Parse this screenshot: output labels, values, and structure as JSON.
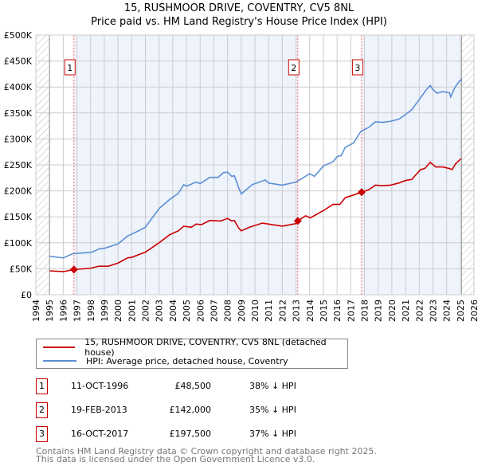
{
  "chart_data": {
    "type": "line",
    "title": "15, RUSHMOOR DRIVE, COVENTRY, CV5 8NL",
    "subtitle": "Price paid vs. HM Land Registry's House Price Index (HPI)",
    "xlabel": "",
    "ylabel": "",
    "xlim": [
      1994,
      2026
    ],
    "ylim": [
      0,
      500000
    ],
    "grid": true,
    "x_ticks": [
      "1994",
      "1995",
      "1996",
      "1997",
      "1998",
      "1999",
      "2000",
      "2001",
      "2002",
      "2003",
      "2004",
      "2005",
      "2006",
      "2007",
      "2008",
      "2009",
      "2010",
      "2011",
      "2012",
      "2013",
      "2014",
      "2015",
      "2016",
      "2017",
      "2018",
      "2019",
      "2020",
      "2021",
      "2022",
      "2023",
      "2024",
      "2025",
      "2026"
    ],
    "y_ticks": [
      {
        "v": 0,
        "label": "£0"
      },
      {
        "v": 50000,
        "label": "£50K"
      },
      {
        "v": 100000,
        "label": "£100K"
      },
      {
        "v": 150000,
        "label": "£150K"
      },
      {
        "v": 200000,
        "label": "£200K"
      },
      {
        "v": 250000,
        "label": "£250K"
      },
      {
        "v": 300000,
        "label": "£300K"
      },
      {
        "v": 350000,
        "label": "£350K"
      },
      {
        "v": 400000,
        "label": "£400K"
      },
      {
        "v": 450000,
        "label": "£450K"
      },
      {
        "v": 500000,
        "label": "£500K"
      }
    ],
    "data_range": [
      1995,
      2025.1
    ],
    "series": [
      {
        "name": "15, RUSHMOOR DRIVE, COVENTRY, CV5 8NL (detached house)",
        "color": "#cc0000",
        "x": [
          1995,
          1996,
          1996.78,
          1998,
          1998.6,
          1999.3,
          2000,
          2000.7,
          2001,
          2002,
          2003,
          2003.8,
          2004.4,
          2004.8,
          2005.35,
          2005.7,
          2006.1,
          2006.7,
          2007.5,
          2008,
          2008.3,
          2008.5,
          2008.8,
          2009,
          2009.6,
          2010.55,
          2011,
          2012,
          2013,
          2013.13,
          2013.7,
          2014.05,
          2015,
          2015.7,
          2016.2,
          2016.6,
          2017.2,
          2017.79,
          2018.3,
          2018.8,
          2019.3,
          2019.9,
          2020.5,
          2021,
          2021.45,
          2022.1,
          2022.4,
          2022.8,
          2023.2,
          2023.7,
          2024.2,
          2024.4,
          2024.65,
          2025.05
        ],
        "y": [
          46,
          44.5,
          48.5,
          51,
          55,
          55,
          61,
          71,
          72,
          82,
          100,
          116,
          123,
          132,
          130,
          136,
          135,
          143,
          142,
          147,
          142,
          143,
          129,
          123,
          130,
          138,
          136,
          132,
          137,
          142,
          152,
          148,
          162,
          174,
          174,
          187,
          192,
          197.5,
          202,
          211,
          210,
          211,
          215,
          220,
          222,
          241,
          243,
          255,
          246,
          246,
          243,
          241,
          252,
          262
        ]
      },
      {
        "name": "HPI: Average price, detached house, Coventry",
        "color": "#5b8fd4",
        "x": [
          1995,
          1996,
          1996.7,
          1998.1,
          1998.6,
          1999.1,
          2000,
          2000.7,
          2001.5,
          2002,
          2003,
          2003.8,
          2004.4,
          2004.8,
          2005,
          2005.7,
          2006,
          2006.7,
          2007.3,
          2007.7,
          2008,
          2008.3,
          2008.5,
          2008.8,
          2009,
          2009.8,
          2010.75,
          2011,
          2012,
          2013,
          2013.5,
          2014,
          2014.35,
          2015,
          2015.7,
          2016,
          2016.3,
          2016.6,
          2017.2,
          2017.5,
          2017.75,
          2018.3,
          2018.8,
          2019.3,
          2019.9,
          2020.5,
          2021,
          2021.45,
          2022,
          2022.5,
          2022.8,
          2023,
          2023.3,
          2023.7,
          2024.2,
          2024.3,
          2024.6,
          2024.9,
          2025.05,
          2025.1
        ],
        "y": [
          74,
          71,
          79,
          82,
          88,
          90,
          98,
          113,
          123,
          130,
          166,
          184,
          195,
          212,
          209,
          217,
          214,
          226,
          226,
          235,
          236,
          228,
          229,
          207,
          194,
          212,
          221,
          215,
          211,
          217,
          225,
          233,
          228,
          248,
          256,
          266,
          268,
          284,
          292,
          305,
          315,
          322,
          333,
          332,
          334,
          338,
          347,
          356,
          376,
          394,
          403,
          395,
          388,
          391,
          389,
          381,
          399,
          410,
          414,
          412
        ]
      }
    ],
    "y_units": "thousands GBP",
    "sales": [
      {
        "id": "1",
        "x": 1996.78,
        "y": 48.5,
        "date": "11-OCT-1996",
        "price": "£48,500",
        "hpi": "38% ↓ HPI"
      },
      {
        "id": "2",
        "x": 2013.13,
        "y": 142,
        "date": "19-FEB-2013",
        "price": "£142,000",
        "hpi": "35% ↓ HPI"
      },
      {
        "id": "3",
        "x": 2017.79,
        "y": 197.5,
        "date": "16-OCT-2017",
        "price": "£197,500",
        "hpi": "37% ↓ HPI"
      }
    ],
    "legend": {
      "placement": "bottom"
    },
    "colors": {
      "shade": "#eef3fc",
      "grid": "#cccccc",
      "marker_line": "#ff6666"
    }
  },
  "footer": {
    "line1": "Contains HM Land Registry data © Crown copyright and database right 2025.",
    "line2": "This data is licensed under the Open Government Licence v3.0."
  }
}
